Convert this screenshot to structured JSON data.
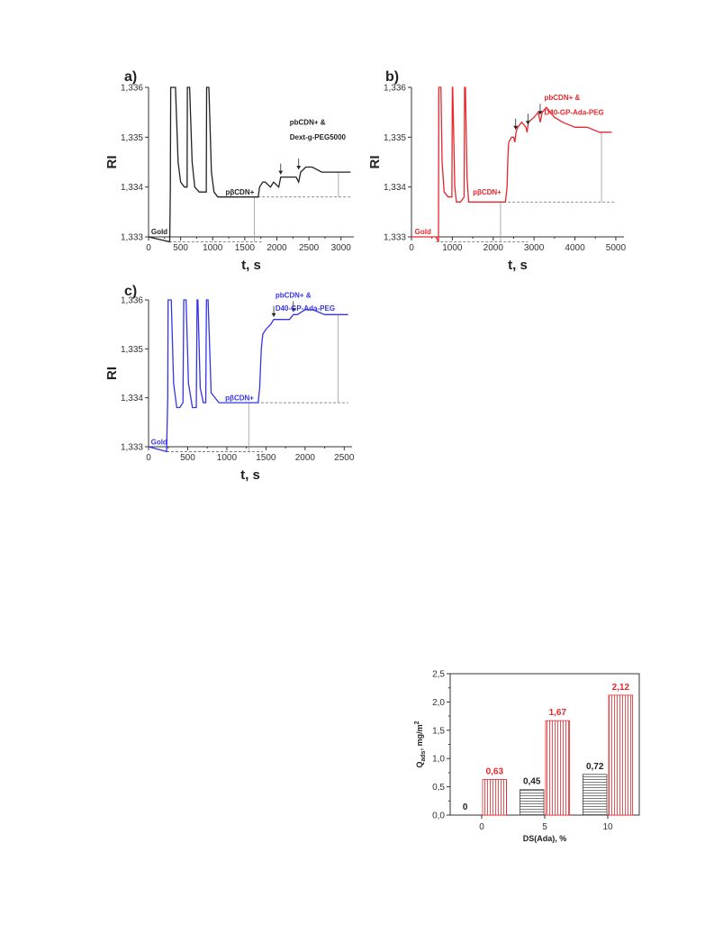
{
  "chart_data": [
    {
      "type": "line",
      "panel": "a)",
      "color": "#222222",
      "xlabel": "t, s",
      "ylabel": "RI",
      "xlim": [
        0,
        3200
      ],
      "ylim": [
        1.333,
        1.336
      ],
      "xticks": [
        "0",
        "500",
        "1000",
        "1500",
        "2000",
        "2500",
        "3000"
      ],
      "xtick_values": [
        0,
        500,
        1000,
        1500,
        2000,
        2500,
        3000
      ],
      "yticks": [
        "1,333",
        "1,334",
        "1,335",
        "1,336"
      ],
      "ytick_values": [
        1.333,
        1.334,
        1.335,
        1.336
      ],
      "series": [
        {
          "x": [
            0,
            330,
            340,
            345,
            360,
            390,
            420,
            460,
            500,
            560,
            600,
            605,
            615,
            640,
            680,
            720,
            790,
            850,
            900,
            905,
            915,
            940,
            980,
            1020,
            1080,
            1200,
            1400,
            1600,
            1710,
            1730,
            1780,
            1820,
            1900,
            1950,
            2030,
            2060,
            2100,
            2200,
            2250,
            2300,
            2340,
            2370,
            2450,
            2550,
            2700,
            3000,
            3150
          ],
          "y": [
            1.333,
            1.3329,
            1.334,
            1.336,
            1.336,
            1.336,
            1.336,
            1.3345,
            1.3341,
            1.334,
            1.334,
            1.336,
            1.336,
            1.336,
            1.3345,
            1.334,
            1.3339,
            1.3339,
            1.3339,
            1.336,
            1.336,
            1.336,
            1.3343,
            1.3339,
            1.3338,
            1.3338,
            1.3338,
            1.3338,
            1.3338,
            1.334,
            1.3341,
            1.3341,
            1.334,
            1.3341,
            1.334,
            1.3342,
            1.3342,
            1.3342,
            1.3342,
            1.3342,
            1.3341,
            1.3343,
            1.3344,
            1.3344,
            1.3343,
            1.3343,
            1.3343
          ]
        }
      ],
      "baselines": [
        {
          "y": 1.3329,
          "x": [
            320,
            1780
          ]
        },
        {
          "y": 1.3338,
          "x": [
            1700,
            3150
          ]
        }
      ],
      "vlines": [
        {
          "x": 1650,
          "y": [
            1.3329,
            1.3338
          ]
        },
        {
          "x": 2960,
          "y": [
            1.3338,
            1.3343
          ]
        }
      ],
      "arrows": [
        {
          "x": 2060,
          "y": 1.3342
        },
        {
          "x": 2340,
          "y": 1.3343
        }
      ],
      "annotations": [
        {
          "text": "Gold",
          "x": 40,
          "y": 1.33305
        },
        {
          "text": "pβCDN+",
          "x": 1200,
          "y": 1.33385
        },
        {
          "text": "pbCDN+ &",
          "x": 2200,
          "y": 1.33525
        },
        {
          "text": "Dext-g-PEG5000",
          "x": 2200,
          "y": 1.33495
        }
      ]
    },
    {
      "type": "line",
      "panel": "b)",
      "color": "#e8262c",
      "xlabel": "t, s",
      "ylabel": "RI",
      "xlim": [
        0,
        5200
      ],
      "ylim": [
        1.333,
        1.336
      ],
      "xticks": [
        "0",
        "1000",
        "2000",
        "3000",
        "4000",
        "5000"
      ],
      "xtick_values": [
        0,
        1000,
        2000,
        3000,
        4000,
        5000
      ],
      "yticks": [
        "1,333",
        "1,334",
        "1,335",
        "1,336"
      ],
      "ytick_values": [
        1.333,
        1.334,
        1.335,
        1.336
      ],
      "series": [
        {
          "x": [
            0,
            600,
            660,
            670,
            690,
            720,
            750,
            800,
            900,
            990,
            1000,
            1010,
            1060,
            1100,
            1200,
            1290,
            1300,
            1320,
            1360,
            1400,
            1500,
            1600,
            1800,
            2000,
            2200,
            2300,
            2340,
            2360,
            2380,
            2450,
            2500,
            2530,
            2560,
            2600,
            2700,
            2800,
            2830,
            2860,
            3000,
            3100,
            3150,
            3200,
            3300,
            3400,
            3500,
            3700,
            4000,
            4300,
            4600,
            4900
          ],
          "y": [
            1.333,
            1.333,
            1.3329,
            1.336,
            1.336,
            1.336,
            1.3345,
            1.3339,
            1.3338,
            1.3338,
            1.336,
            1.336,
            1.334,
            1.3337,
            1.3337,
            1.3338,
            1.336,
            1.336,
            1.3342,
            1.3337,
            1.3337,
            1.3337,
            1.3337,
            1.3337,
            1.3337,
            1.3337,
            1.334,
            1.3346,
            1.3349,
            1.335,
            1.335,
            1.3349,
            1.3351,
            1.3352,
            1.3353,
            1.3352,
            1.3351,
            1.3353,
            1.3354,
            1.3355,
            1.3353,
            1.3355,
            1.3356,
            1.3355,
            1.3354,
            1.3353,
            1.3352,
            1.3352,
            1.3351,
            1.3351
          ]
        }
      ],
      "baselines": [
        {
          "y": 1.3329,
          "x": [
            600,
            2850
          ]
        },
        {
          "y": 1.3337,
          "x": [
            2250,
            5000
          ]
        }
      ],
      "vlines": [
        {
          "x": 2180,
          "y": [
            1.3329,
            1.3337
          ]
        },
        {
          "x": 4650,
          "y": [
            1.3337,
            1.3351
          ]
        }
      ],
      "arrows": [
        {
          "x": 2550,
          "y": 1.3351
        },
        {
          "x": 2850,
          "y": 1.3352
        },
        {
          "x": 3150,
          "y": 1.3354
        }
      ],
      "annotations": [
        {
          "text": "Gold",
          "x": 80,
          "y": 1.33305
        },
        {
          "text": "pβCDN+",
          "x": 1500,
          "y": 1.33385
        },
        {
          "text": "pbCDN+ &",
          "x": 3250,
          "y": 1.33575
        },
        {
          "text": "D40-GP-Ada-PEG",
          "x": 3250,
          "y": 1.33545
        }
      ]
    },
    {
      "type": "line",
      "panel": "c)",
      "color": "#3535e8",
      "xlabel": "t, s",
      "ylabel": "RI",
      "xlim": [
        0,
        2600
      ],
      "ylim": [
        1.333,
        1.336
      ],
      "xticks": [
        "0",
        "500",
        "1000",
        "1500",
        "2000",
        "2500"
      ],
      "xtick_values": [
        0,
        500,
        1000,
        1500,
        2000,
        2500
      ],
      "yticks": [
        "1,333",
        "1,334",
        "1,335",
        "1,336"
      ],
      "ytick_values": [
        1.333,
        1.334,
        1.335,
        1.336
      ],
      "series": [
        {
          "x": [
            0,
            230,
            245,
            250,
            265,
            290,
            320,
            360,
            400,
            440,
            450,
            460,
            480,
            510,
            560,
            610,
            620,
            630,
            660,
            700,
            730,
            740,
            760,
            800,
            900,
            1100,
            1300,
            1400,
            1420,
            1440,
            1460,
            1500,
            1560,
            1600,
            1700,
            1800,
            1850,
            1900,
            2000,
            2100,
            2250,
            2400,
            2550
          ],
          "y": [
            1.333,
            1.3329,
            1.334,
            1.336,
            1.336,
            1.336,
            1.3343,
            1.3338,
            1.3338,
            1.3339,
            1.336,
            1.336,
            1.336,
            1.3343,
            1.3338,
            1.3338,
            1.336,
            1.336,
            1.3342,
            1.3339,
            1.3339,
            1.336,
            1.336,
            1.3341,
            1.3339,
            1.3339,
            1.3339,
            1.3339,
            1.3342,
            1.335,
            1.3353,
            1.3354,
            1.3355,
            1.3356,
            1.3356,
            1.3356,
            1.3357,
            1.3357,
            1.3358,
            1.3358,
            1.3357,
            1.3357,
            1.3357
          ]
        }
      ],
      "baselines": [
        {
          "y": 1.3329,
          "x": [
            230,
            1460
          ]
        },
        {
          "y": 1.3339,
          "x": [
            1380,
            2550
          ]
        }
      ],
      "vlines": [
        {
          "x": 1280,
          "y": [
            1.3329,
            1.3339
          ]
        },
        {
          "x": 2420,
          "y": [
            1.3339,
            1.3357
          ]
        }
      ],
      "arrows": [
        {
          "x": 1600,
          "y": 1.3356
        },
        {
          "x": 1850,
          "y": 1.3357
        }
      ],
      "annotations": [
        {
          "text": "Gold",
          "x": 30,
          "y": 1.33305
        },
        {
          "text": "pβCDN+",
          "x": 980,
          "y": 1.33395
        },
        {
          "text": "pbCDN+ &",
          "x": 1620,
          "y": 1.33605
        },
        {
          "text": "D40-GP-Ada-PEG",
          "x": 1620,
          "y": 1.33578
        }
      ]
    },
    {
      "type": "bar",
      "categories": [
        "0",
        "5",
        "10"
      ],
      "xlabel": "DS(Ada), %",
      "ylabel": "Q",
      "ylabel_sub": "ads",
      "ylabel_unit": ", mg/m",
      "ylabel_sup": "2",
      "ylim": [
        0,
        2.5
      ],
      "yticks": [
        "0,0",
        "0,5",
        "1,0",
        "1,5",
        "2,0",
        "2,5"
      ],
      "ytick_values": [
        0,
        0.5,
        1.0,
        1.5,
        2.0,
        2.5
      ],
      "series": [
        {
          "values": [
            0,
            0.45,
            0.72
          ],
          "labels": [
            "0",
            "0,45",
            "0,72"
          ],
          "color": "#222222"
        },
        {
          "values": [
            0.63,
            1.67,
            2.12
          ],
          "labels": [
            "0,63",
            "1,67",
            "2,12"
          ],
          "color": "#e8262c"
        }
      ]
    }
  ]
}
